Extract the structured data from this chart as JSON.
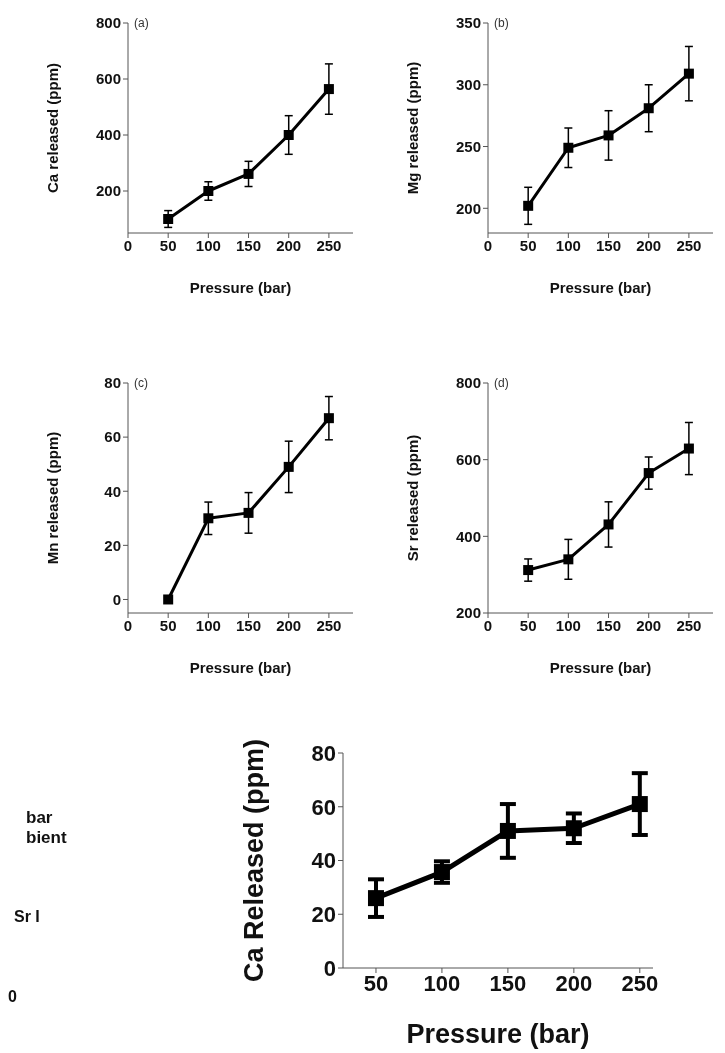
{
  "chart_data": [
    {
      "type": "line",
      "x": [
        50,
        100,
        150,
        200,
        250
      ],
      "values": [
        100,
        200,
        261,
        400,
        564
      ],
      "errors": [
        30,
        33,
        45,
        69,
        90
      ],
      "color": "#000000",
      "marker": "square",
      "xlim": [
        0,
        280
      ],
      "xticks": [
        0,
        50,
        100,
        150,
        200,
        250
      ],
      "ylim": [
        50,
        800
      ],
      "yticks": [
        200,
        400,
        600,
        800
      ],
      "xlabel": "Pressure (bar)",
      "ylabel": "Ca released (ppm)",
      "annotations": [
        "(a)"
      ]
    },
    {
      "type": "line",
      "x": [
        50,
        100,
        150,
        200,
        250
      ],
      "values": [
        202,
        249,
        259,
        281,
        309
      ],
      "errors": [
        15,
        16,
        20,
        19,
        22
      ],
      "color": "#000000",
      "marker": "square",
      "xlim": [
        0,
        280
      ],
      "xticks": [
        0,
        50,
        100,
        150,
        200,
        250
      ],
      "ylim": [
        180,
        350
      ],
      "yticks": [
        200,
        250,
        300,
        350
      ],
      "xlabel": "Pressure (bar)",
      "ylabel": "Mg released (ppm)",
      "annotations": [
        "(b)"
      ]
    },
    {
      "type": "line",
      "x": [
        50,
        100,
        150,
        200,
        250
      ],
      "values": [
        0,
        30,
        32,
        49,
        67
      ],
      "errors": [
        null,
        6,
        7.5,
        9.5,
        8
      ],
      "color": "#000000",
      "marker": "square",
      "xlim": [
        0,
        280
      ],
      "xticks": [
        0,
        50,
        100,
        150,
        200,
        250
      ],
      "ylim": [
        -5,
        80
      ],
      "yticks": [
        0,
        20,
        40,
        60,
        80
      ],
      "xlabel": "Pressure (bar)",
      "ylabel": "Mn released (ppm)",
      "annotations": [
        "(c)"
      ]
    },
    {
      "type": "line",
      "x": [
        50,
        100,
        150,
        200,
        250
      ],
      "values": [
        312,
        340,
        431,
        565,
        629
      ],
      "errors": [
        29,
        52,
        59,
        42,
        68
      ],
      "color": "#000000",
      "marker": "square",
      "xlim": [
        0,
        280
      ],
      "xticks": [
        0,
        50,
        100,
        150,
        200,
        250
      ],
      "ylim": [
        200,
        800
      ],
      "yticks": [
        200,
        400,
        600,
        800
      ],
      "xlabel": "Pressure (bar)",
      "ylabel": "Sr released (ppm)",
      "annotations": [
        "(d)"
      ]
    },
    {
      "type": "other",
      "annotations": [
        "bar",
        "bient",
        "Sr I",
        "0"
      ]
    },
    {
      "type": "line",
      "x": [
        50,
        100,
        150,
        200,
        250
      ],
      "values": [
        26,
        35.7,
        51,
        52,
        61
      ],
      "errors": [
        7,
        4,
        10,
        5.5,
        11.5
      ],
      "color": "#000000",
      "marker": "square",
      "xlim": [
        25,
        260
      ],
      "xticks": [
        50,
        100,
        150,
        200,
        250
      ],
      "ylim": [
        0,
        80
      ],
      "yticks": [
        0,
        20,
        40,
        60,
        80
      ],
      "xlabel": "Pressure (bar)",
      "ylabel": "Ca Released (ppm)"
    }
  ]
}
